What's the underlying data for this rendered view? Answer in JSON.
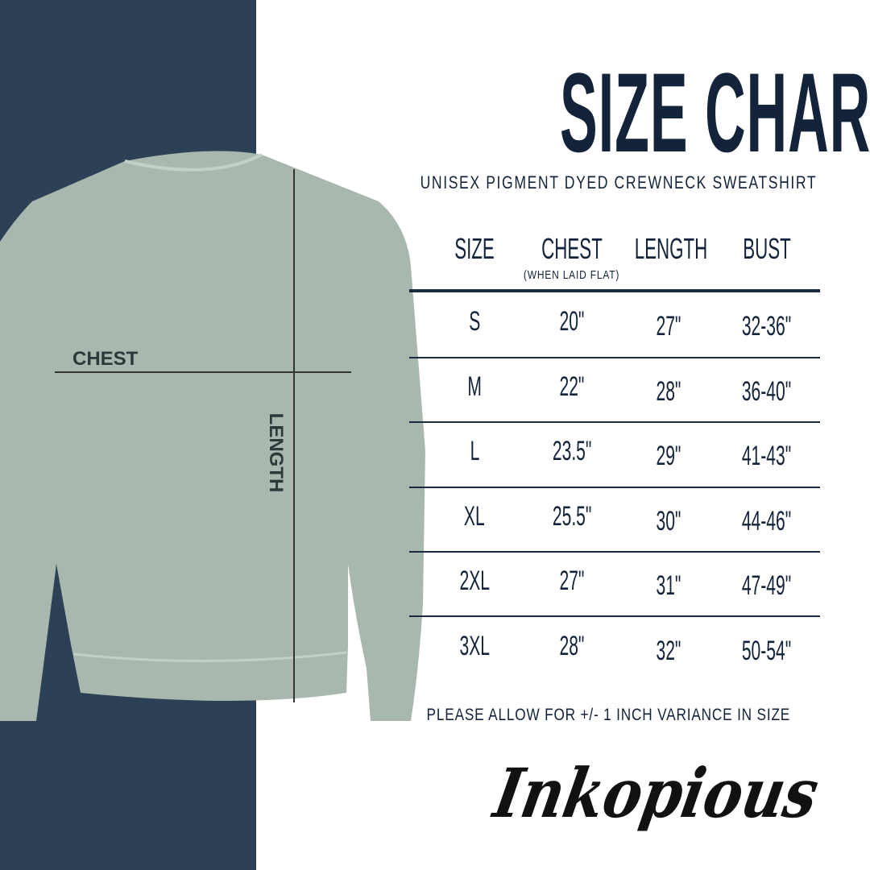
{
  "title": "SIZE CHART",
  "subtitle": "UNISEX PIGMENT DYED CREWNECK SWEATSHIRT",
  "diagram": {
    "chest_label": "CHEST",
    "length_label": "LENGTH",
    "shirt_color": "#a8b8ae",
    "panel_color": "#2d4156"
  },
  "table": {
    "headers": [
      "SIZE",
      "CHEST",
      "LENGTH",
      "BUST"
    ],
    "chest_note": "(WHEN LAID FLAT)",
    "rows": [
      [
        "S",
        "20\"",
        "27\"",
        "32-36\""
      ],
      [
        "M",
        "22\"",
        "28\"",
        "36-40\""
      ],
      [
        "L",
        "23.5\"",
        "29\"",
        "41-43\""
      ],
      [
        "XL",
        "25.5\"",
        "30\"",
        "44-46\""
      ],
      [
        "2XL",
        "27\"",
        "31\"",
        "47-49\""
      ],
      [
        "3XL",
        "28\"",
        "32\"",
        "50-54\""
      ]
    ]
  },
  "note": "PLEASE ALLOW FOR +/- 1 INCH VARIANCE IN SIZE",
  "brand": "Inkopious"
}
